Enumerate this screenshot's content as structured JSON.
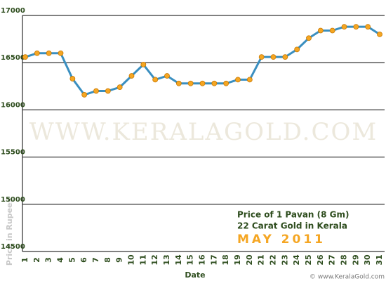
{
  "chart_data": {
    "type": "line",
    "watermark": "WWW.KERALAGOLD.COM",
    "y_label": "Price in Rupees",
    "x_label": "Date",
    "annotation": [
      "Price of 1 Pavan (8 Gm)",
      "22 Carat Gold in Kerala",
      "MAY 2011"
    ],
    "footer": "© www.KeralaGold.com",
    "categories": [
      "1",
      "2",
      "3",
      "4",
      "5",
      "6",
      "7",
      "8",
      "9",
      "10",
      "11",
      "12",
      "13",
      "14",
      "15",
      "16",
      "17",
      "18",
      "19",
      "20",
      "21",
      "22",
      "23",
      "24",
      "25",
      "26",
      "27",
      "28",
      "29",
      "30",
      "31"
    ],
    "series": [
      {
        "color": "#3a8fc0",
        "marker_color": "#f5a623",
        "values": [
          16560,
          16600,
          16600,
          16600,
          16330,
          16160,
          16200,
          16200,
          16240,
          16360,
          16480,
          16320,
          16360,
          16280,
          16280,
          16280,
          16280,
          16280,
          16320,
          16320,
          16560,
          16560,
          16560,
          16640,
          16760,
          16840,
          16840,
          16880,
          16880,
          16880,
          16800
        ]
      }
    ],
    "ylim": [
      14500,
      17000
    ],
    "yticks": [
      14500,
      15000,
      15500,
      16000,
      16500,
      17000
    ],
    "grid": true
  }
}
